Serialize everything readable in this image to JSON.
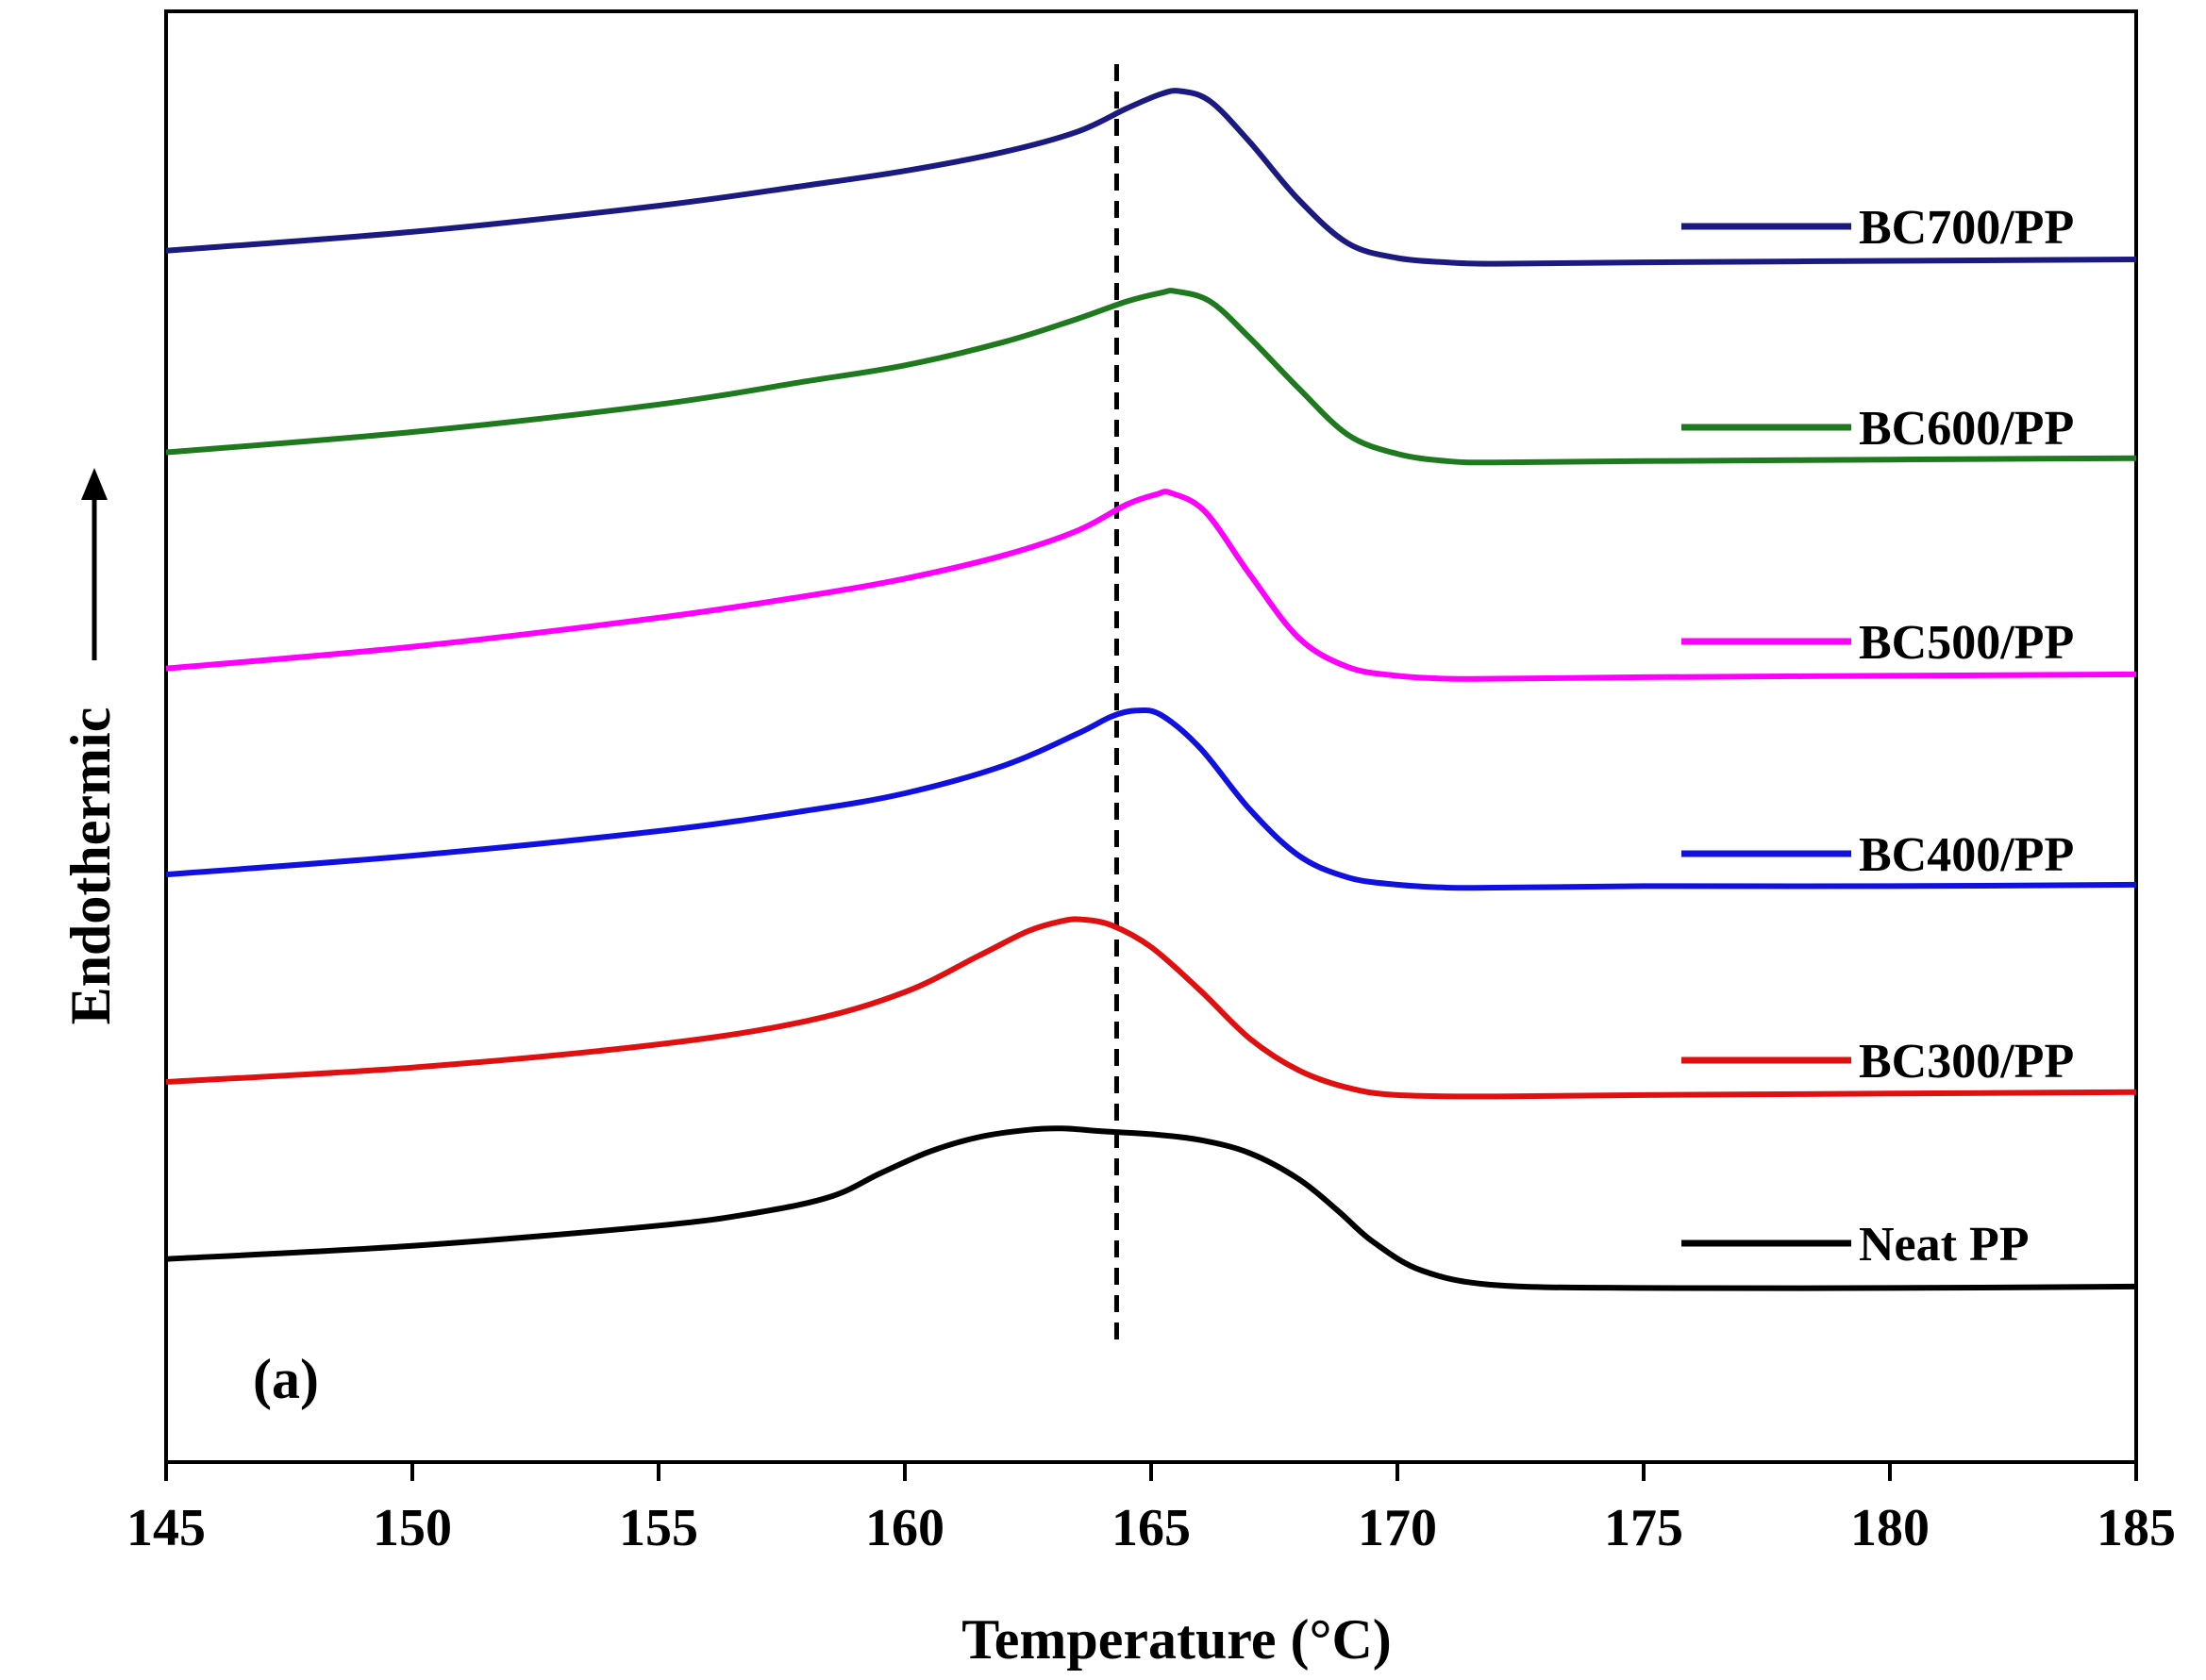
{
  "chart_data": {
    "type": "line",
    "title": "",
    "panel_label": "(a)",
    "xlabel": "Temperature (°C)",
    "ylabel": "Endothermic",
    "ylabel_arrow": "up",
    "xlim": [
      145,
      185
    ],
    "ylim": [
      0,
      1
    ],
    "x_ticks": [
      145,
      150,
      155,
      160,
      165,
      170,
      175,
      180,
      185
    ],
    "y_ticks_shown": false,
    "grid": false,
    "reference_line": {
      "x": 164.3,
      "style": "dashed",
      "color": "#000000"
    },
    "legend_position": "right",
    "series": [
      {
        "name": "BC700/PP",
        "color": "#1a1a80",
        "x": [
          145,
          150,
          155,
          158,
          160,
          162,
          163.5,
          164.5,
          165.2,
          165.6,
          166.2,
          167,
          168,
          169,
          170,
          171,
          172,
          175,
          180,
          185
        ],
        "y": [
          0.835,
          0.848,
          0.866,
          0.88,
          0.89,
          0.903,
          0.917,
          0.933,
          0.943,
          0.945,
          0.938,
          0.91,
          0.87,
          0.84,
          0.83,
          0.827,
          0.826,
          0.827,
          0.828,
          0.829
        ]
      },
      {
        "name": "BC600/PP",
        "color": "#1f7a1f",
        "x": [
          145,
          150,
          155,
          158,
          160,
          162,
          163.5,
          164.5,
          165.2,
          165.5,
          166.2,
          167,
          168,
          169,
          170,
          171,
          172,
          175,
          180,
          185
        ],
        "y": [
          0.696,
          0.71,
          0.729,
          0.745,
          0.756,
          0.772,
          0.788,
          0.8,
          0.806,
          0.807,
          0.8,
          0.775,
          0.74,
          0.708,
          0.695,
          0.69,
          0.689,
          0.69,
          0.691,
          0.692
        ]
      },
      {
        "name": "BC500/PP",
        "color": "#ff00ff",
        "x": [
          145,
          150,
          155,
          158,
          160,
          162,
          163.5,
          164.5,
          165.1,
          165.4,
          166.1,
          167,
          168,
          169,
          170,
          171,
          172,
          175,
          180,
          185
        ],
        "y": [
          0.547,
          0.562,
          0.582,
          0.597,
          0.609,
          0.625,
          0.642,
          0.66,
          0.667,
          0.668,
          0.655,
          0.612,
          0.568,
          0.548,
          0.542,
          0.54,
          0.54,
          0.541,
          0.542,
          0.543
        ]
      },
      {
        "name": "BC400/PP",
        "color": "#1010e0",
        "x": [
          145,
          150,
          155,
          158,
          160,
          162,
          163.5,
          164.2,
          164.7,
          165.2,
          166,
          167,
          168,
          169,
          170,
          171,
          172,
          175,
          180,
          185
        ],
        "y": [
          0.405,
          0.418,
          0.435,
          0.449,
          0.461,
          0.48,
          0.502,
          0.514,
          0.518,
          0.515,
          0.492,
          0.45,
          0.418,
          0.403,
          0.398,
          0.396,
          0.396,
          0.397,
          0.397,
          0.398
        ]
      },
      {
        "name": "BC300/PP",
        "color": "#e01010",
        "x": [
          145,
          150,
          155,
          158,
          160,
          161.5,
          162.5,
          163.2,
          163.6,
          164.2,
          165,
          166,
          167,
          168,
          169,
          170,
          172,
          175,
          180,
          185
        ],
        "y": [
          0.262,
          0.272,
          0.288,
          0.304,
          0.324,
          0.349,
          0.366,
          0.373,
          0.374,
          0.37,
          0.355,
          0.325,
          0.292,
          0.27,
          0.258,
          0.253,
          0.252,
          0.253,
          0.254,
          0.255
        ]
      },
      {
        "name": "Neat PP",
        "color": "#000000",
        "x": [
          145,
          150,
          155,
          157,
          158.5,
          159.5,
          160.5,
          161.5,
          162.5,
          163.2,
          164,
          165,
          166,
          167,
          168,
          168.8,
          169.5,
          170.5,
          172,
          175,
          180,
          185
        ],
        "y": [
          0.14,
          0.149,
          0.163,
          0.172,
          0.183,
          0.199,
          0.214,
          0.224,
          0.229,
          0.23,
          0.228,
          0.226,
          0.222,
          0.213,
          0.195,
          0.173,
          0.152,
          0.132,
          0.122,
          0.12,
          0.12,
          0.121
        ]
      }
    ]
  }
}
